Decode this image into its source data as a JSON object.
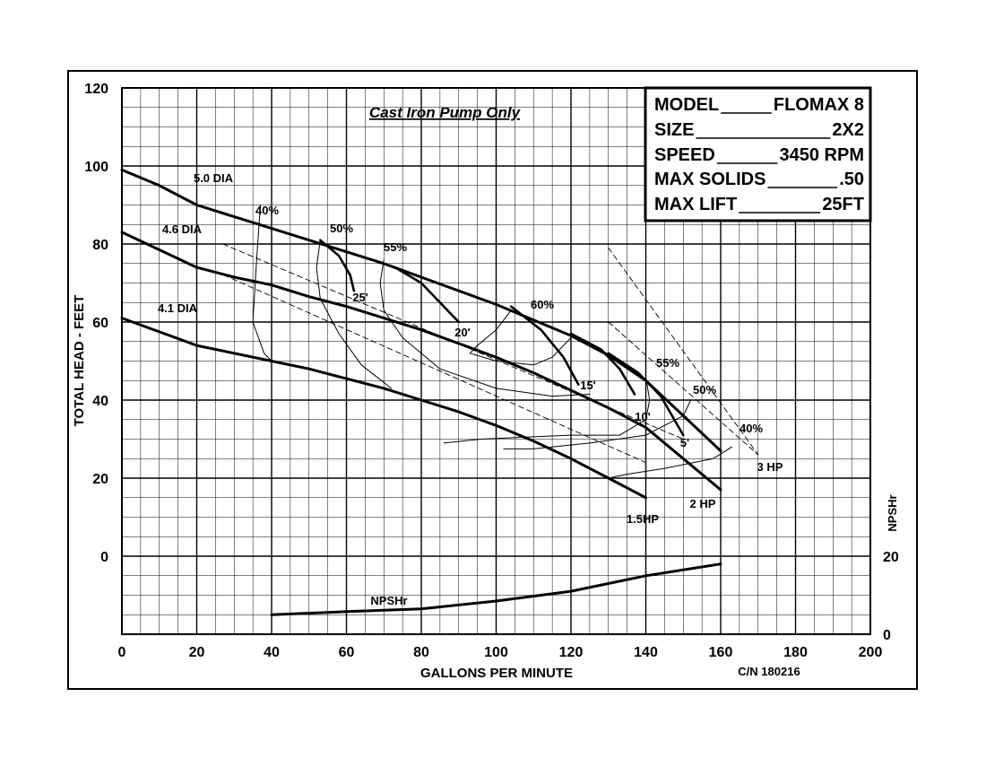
{
  "chart_data": {
    "type": "line",
    "title": "Cast Iron Pump Only",
    "xlabel": "GALLONS PER MINUTE",
    "ylabel": "TOTAL HEAD - FEET",
    "y2label": "NPSHr",
    "xlim": [
      0,
      200
    ],
    "ylim": [
      -20,
      120
    ],
    "x_ticks": [
      "0",
      "20",
      "40",
      "60",
      "80",
      "100",
      "120",
      "140",
      "160",
      "180",
      "200"
    ],
    "y_ticks": [
      "120",
      "100",
      "80",
      "60",
      "40",
      "20",
      "0"
    ],
    "y2_ticks": [
      "20",
      "0"
    ],
    "grid": true,
    "catalog_number": "C/N 180216",
    "info_box": [
      {
        "label": "MODEL",
        "value": "FLOMAX 8"
      },
      {
        "label": "SIZE",
        "value": "2X2"
      },
      {
        "label": "SPEED",
        "value": "3450 RPM"
      },
      {
        "label": "MAX SOLIDS",
        "value": ".50"
      },
      {
        "label": "MAX LIFT",
        "value": "25FT"
      }
    ],
    "series": [
      {
        "name": "5.0 DIA",
        "x": [
          0,
          10,
          20,
          30,
          40,
          50,
          60,
          70,
          80,
          90,
          100,
          110,
          120,
          130,
          140,
          150,
          160
        ],
        "values": [
          99,
          95,
          90,
          87,
          84,
          81,
          78,
          75,
          71.5,
          68,
          64.5,
          60.5,
          56.5,
          51.5,
          45,
          36,
          27
        ]
      },
      {
        "name": "4.6 DIA",
        "x": [
          0,
          10,
          20,
          30,
          40,
          50,
          60,
          70,
          80,
          90,
          100,
          110,
          120,
          130,
          140,
          150,
          160
        ],
        "values": [
          83,
          78.5,
          74,
          71.5,
          69.5,
          66.5,
          64,
          61,
          58,
          54.5,
          51,
          47,
          42.5,
          38,
          33,
          25,
          17
        ]
      },
      {
        "name": "4.1 DIA",
        "x": [
          0,
          10,
          20,
          30,
          40,
          50,
          60,
          70,
          80,
          90,
          100,
          110,
          120,
          130,
          140
        ],
        "values": [
          61,
          57.5,
          54,
          52,
          50,
          48,
          45.5,
          43,
          40,
          37,
          33.5,
          29.5,
          25,
          20,
          15
        ]
      },
      {
        "name": "NPSHr",
        "x": [
          40,
          60,
          80,
          100,
          120,
          140,
          160
        ],
        "values": [
          -15,
          -14.2,
          -13.5,
          -11.5,
          -9,
          -5,
          -2
        ]
      }
    ],
    "efficiency_labels": [
      "40%",
      "50%",
      "55%",
      "60%",
      "55%",
      "50%",
      "40%"
    ],
    "lift_labels": [
      "25'",
      "20'",
      "15'",
      "10'",
      "5'"
    ],
    "hp_labels": [
      "1.5HP",
      "2 HP",
      "3 HP"
    ]
  }
}
